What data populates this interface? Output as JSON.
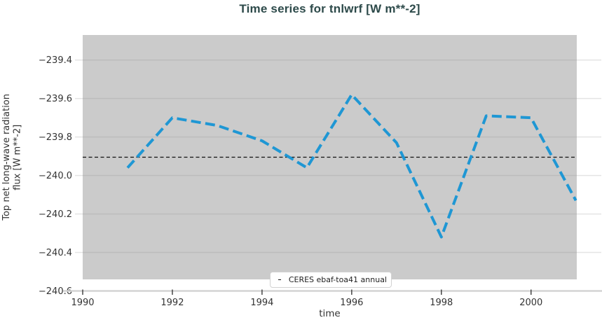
{
  "colors": {
    "title_color": "#2d4a4a",
    "tick_text": "#333333",
    "panel_bg": "#cbcbcb",
    "grid_inner": "#bcbcbc",
    "grid_outer": "#e4e4e4",
    "axis_line": "#d4d4d4",
    "tick_mark": "#3a3a3a",
    "series_line": "#1f97d4",
    "reference_line": "#111111",
    "legend_border": "#d2d2d2"
  },
  "chart_data": {
    "type": "line",
    "title": "Time series for tnlwrf [W m**-2]",
    "xlabel": "time",
    "ylabel": "Top net long-wave radiation flux [W m**-2]",
    "ylabel_lines": [
      "Top net long-wave radiation",
      "flux [W m**-2]"
    ],
    "x": [
      1991,
      1992,
      1993,
      1994,
      1995,
      1996,
      1997,
      1998,
      1999,
      2000,
      2001
    ],
    "series": [
      {
        "name": "tnlwrf",
        "color": "#1f97d4",
        "line_style": "dashed",
        "values": [
          -239.96,
          -239.7,
          -239.74,
          -239.82,
          -239.96,
          -239.58,
          -239.83,
          -240.32,
          -239.69,
          -239.7,
          -240.13
        ]
      }
    ],
    "reference_line": {
      "label": "CERES ebaf-toa41 annual",
      "value": -239.905,
      "style": "black-dashed"
    },
    "xticks": [
      {
        "value": 1990,
        "label": "1990"
      },
      {
        "value": 1992,
        "label": "1992"
      },
      {
        "value": 1994,
        "label": "1994"
      },
      {
        "value": 1996,
        "label": "1996"
      },
      {
        "value": 1998,
        "label": "1998"
      },
      {
        "value": 2000,
        "label": "2000"
      }
    ],
    "yticks": [
      {
        "value": -239.4,
        "label": "−239.4"
      },
      {
        "value": -239.6,
        "label": "−239.6"
      },
      {
        "value": -239.8,
        "label": "−239.8"
      },
      {
        "value": -240.0,
        "label": "−240.0"
      },
      {
        "value": -240.2,
        "label": "−240.2"
      },
      {
        "value": -240.4,
        "label": "−240.4"
      },
      {
        "value": -240.6,
        "label": "−240.6"
      }
    ],
    "xlim": [
      1990,
      2001.02
    ],
    "ylim": [
      -240.54,
      -239.27
    ],
    "grid": true,
    "legend_position": "bottom-center"
  }
}
